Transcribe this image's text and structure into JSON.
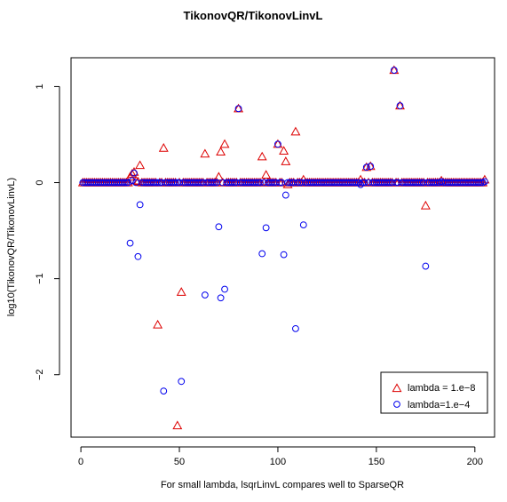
{
  "chart_data": {
    "type": "scatter",
    "title": "TikonovQR/TikonovLinvL",
    "xlabel": "For small lambda, lsqrLinvL compares well to SparseQR",
    "ylabel": "log10(TikonovQR/TikonovLinvL)",
    "xlim": [
      -5,
      210
    ],
    "ylim": [
      -2.65,
      1.3
    ],
    "xticks": [
      0,
      50,
      100,
      150,
      200
    ],
    "xtick_labels": [
      "0",
      "50",
      "100",
      "150",
      "200"
    ],
    "yticks": [
      -2,
      -1,
      0,
      1
    ],
    "ytick_labels": [
      "−2",
      "−1",
      "0",
      "1"
    ],
    "grid": false,
    "legend_position": "bottom-right",
    "series": [
      {
        "name": "lambda = 1.e−8",
        "marker": "triangle",
        "color": "#dd0000",
        "x": [
          1,
          2,
          3,
          4,
          5,
          6,
          7,
          8,
          9,
          10,
          11,
          12,
          13,
          14,
          15,
          16,
          17,
          18,
          19,
          20,
          21,
          22,
          23,
          24,
          25,
          26,
          27,
          28,
          29,
          30,
          31,
          32,
          33,
          34,
          35,
          36,
          37,
          38,
          39,
          40,
          41,
          42,
          43,
          44,
          45,
          46,
          47,
          48,
          49,
          50,
          51,
          52,
          53,
          54,
          55,
          56,
          57,
          58,
          59,
          60,
          61,
          62,
          63,
          64,
          65,
          66,
          67,
          68,
          69,
          70,
          71,
          72,
          73,
          74,
          75,
          76,
          77,
          78,
          79,
          80,
          81,
          82,
          83,
          84,
          85,
          86,
          87,
          88,
          89,
          90,
          91,
          92,
          93,
          94,
          95,
          96,
          97,
          98,
          99,
          100,
          101,
          102,
          103,
          104,
          105,
          106,
          107,
          108,
          109,
          110,
          111,
          112,
          113,
          114,
          115,
          116,
          117,
          118,
          119,
          120,
          121,
          122,
          123,
          124,
          125,
          126,
          127,
          128,
          129,
          130,
          131,
          132,
          133,
          134,
          135,
          136,
          137,
          138,
          139,
          140,
          141,
          142,
          143,
          144,
          145,
          146,
          147,
          148,
          149,
          150,
          151,
          152,
          153,
          154,
          155,
          156,
          157,
          158,
          159,
          160,
          161,
          162,
          163,
          164,
          165,
          166,
          167,
          168,
          169,
          170,
          171,
          172,
          173,
          174,
          175,
          176,
          177,
          178,
          179,
          180,
          181,
          182,
          183,
          184,
          185,
          186,
          187,
          188,
          189,
          190,
          191,
          192,
          193,
          194,
          195,
          196,
          197,
          198,
          199,
          200,
          201,
          202,
          203,
          204,
          205
        ],
        "y": [
          0,
          0,
          0,
          0,
          0,
          0,
          0,
          0,
          0,
          0,
          0,
          0,
          0,
          0,
          0,
          0,
          0,
          0,
          0,
          0,
          0,
          0,
          0,
          0,
          0.06,
          0.09,
          0.11,
          0.02,
          0.01,
          0.18,
          0,
          0,
          0,
          0,
          0,
          0,
          0,
          0,
          -1.48,
          0,
          0,
          0.36,
          0,
          0,
          0,
          0,
          0,
          0,
          -2.53,
          0,
          -1.14,
          0,
          0,
          0,
          0,
          0,
          0,
          0,
          0,
          0,
          0,
          0,
          0.3,
          0,
          0,
          0,
          0,
          0,
          0,
          0.06,
          0.32,
          0,
          0.4,
          0,
          0,
          0,
          0,
          0,
          0,
          0.77,
          0,
          0,
          0,
          0,
          0,
          0,
          0,
          0,
          0,
          0,
          0,
          0.27,
          0,
          0.08,
          0,
          0,
          0,
          0,
          0,
          0.4,
          0,
          0,
          0.33,
          0.22,
          -0.02,
          0,
          0,
          0,
          0.53,
          0,
          0,
          0,
          0.03,
          0,
          0,
          0,
          0,
          0,
          0,
          0,
          0,
          0,
          0,
          0,
          0,
          0,
          0,
          0,
          0,
          0,
          0,
          0,
          0,
          0,
          0,
          0,
          0,
          0,
          0,
          0,
          0,
          0.03,
          0,
          0,
          0.16,
          0,
          0.17,
          0,
          0,
          0,
          0,
          0,
          0,
          0,
          0,
          0,
          0,
          0,
          1.17,
          0,
          0,
          0.8,
          0,
          0,
          0,
          0,
          0,
          0,
          0,
          0,
          0,
          0,
          0,
          0,
          -0.24,
          0,
          0,
          0,
          0,
          0,
          0,
          0,
          0.02,
          0,
          0,
          0,
          0,
          0,
          0,
          0,
          0,
          0,
          0,
          0,
          0,
          0,
          0,
          0,
          0,
          0,
          0,
          0,
          0,
          0,
          0.03
        ]
      },
      {
        "name": "lambda=1.e−4",
        "marker": "circle",
        "color": "#0000ee",
        "x": [
          1,
          2,
          3,
          4,
          5,
          6,
          7,
          8,
          9,
          10,
          11,
          12,
          13,
          14,
          15,
          16,
          17,
          18,
          19,
          20,
          21,
          22,
          23,
          24,
          25,
          26,
          27,
          28,
          29,
          30,
          31,
          32,
          33,
          34,
          35,
          36,
          37,
          38,
          39,
          40,
          41,
          42,
          43,
          44,
          45,
          46,
          47,
          48,
          49,
          50,
          51,
          52,
          53,
          54,
          55,
          56,
          57,
          58,
          59,
          60,
          61,
          62,
          63,
          64,
          65,
          66,
          67,
          68,
          69,
          70,
          71,
          72,
          73,
          74,
          75,
          76,
          77,
          78,
          79,
          80,
          81,
          82,
          83,
          84,
          85,
          86,
          87,
          88,
          89,
          90,
          91,
          92,
          93,
          94,
          95,
          96,
          97,
          98,
          99,
          100,
          101,
          102,
          103,
          104,
          105,
          106,
          107,
          108,
          109,
          110,
          111,
          112,
          113,
          114,
          115,
          116,
          117,
          118,
          119,
          120,
          121,
          122,
          123,
          124,
          125,
          126,
          127,
          128,
          129,
          130,
          131,
          132,
          133,
          134,
          135,
          136,
          137,
          138,
          139,
          140,
          141,
          142,
          143,
          144,
          145,
          146,
          147,
          148,
          149,
          150,
          151,
          152,
          153,
          154,
          155,
          156,
          157,
          158,
          159,
          160,
          161,
          162,
          163,
          164,
          165,
          166,
          167,
          168,
          169,
          170,
          171,
          172,
          173,
          174,
          175,
          176,
          177,
          178,
          179,
          180,
          181,
          182,
          183,
          184,
          185,
          186,
          187,
          188,
          189,
          190,
          191,
          192,
          193,
          194,
          195,
          196,
          197,
          198,
          199,
          200,
          201,
          202,
          203,
          204,
          205
        ],
        "y": [
          0,
          0,
          0,
          0,
          0,
          0,
          0,
          0,
          0,
          0,
          0,
          0,
          0,
          0,
          0,
          0,
          0,
          0,
          0,
          0,
          0,
          0,
          0,
          0,
          -0.63,
          0.02,
          0.1,
          0,
          -0.77,
          -0.23,
          0,
          0,
          0,
          0,
          0,
          0,
          0,
          0,
          0,
          0,
          0,
          -2.17,
          0,
          0,
          0,
          0,
          0,
          0,
          0,
          0,
          -2.07,
          0,
          0,
          0,
          0,
          0,
          0,
          0,
          0,
          0,
          0,
          0,
          -1.17,
          0,
          0,
          0,
          0,
          0,
          0,
          -0.46,
          -1.2,
          0,
          -1.11,
          0,
          0,
          0,
          0,
          0,
          0,
          0.77,
          0,
          0,
          0,
          0,
          0,
          0,
          0,
          0,
          0,
          0,
          0,
          -0.74,
          0,
          -0.47,
          0,
          0,
          0,
          0,
          0,
          0.4,
          0,
          0,
          -0.75,
          -0.13,
          0,
          0,
          0,
          0,
          -1.52,
          0,
          0,
          0,
          -0.44,
          0,
          0,
          0,
          0,
          0,
          0,
          0,
          0,
          0,
          0,
          0,
          0,
          0,
          0,
          0,
          0,
          0,
          0,
          0,
          0,
          0,
          0,
          0,
          0,
          0,
          0,
          0,
          0,
          -0.02,
          0,
          0,
          0.16,
          0,
          0.17,
          0,
          0,
          0,
          0,
          0,
          0,
          0,
          0,
          0,
          0,
          0,
          1.17,
          0,
          0,
          0.8,
          0,
          0,
          0,
          0,
          0,
          0,
          0,
          0,
          0,
          0,
          0,
          0,
          -0.87,
          0,
          0,
          0,
          0,
          0,
          0,
          0,
          0.01,
          0,
          0,
          0,
          0,
          0,
          0,
          0,
          0,
          0,
          0,
          0,
          0,
          0,
          0,
          0,
          0,
          0,
          0,
          0,
          0,
          0,
          0.01
        ]
      }
    ]
  }
}
